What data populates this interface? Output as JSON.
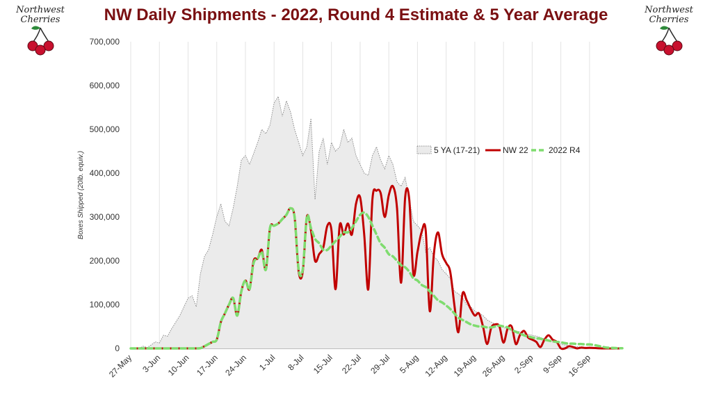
{
  "logo": {
    "line1": "Northwest",
    "line2": "Cherries"
  },
  "colors": {
    "title": "#7a1012",
    "nw22": "#c00000",
    "r4": "#7fdc6f",
    "avg_fill": "#ebebeb",
    "avg_stroke": "#8a8a8a"
  },
  "chart_data": {
    "type": "area",
    "title": "NW Daily Shipments - 2022, Round 4 Estimate & 5 Year Average",
    "ylabel": "Boxes Shipped (20lb. equiv.)",
    "xlabel": "",
    "ylim": [
      0,
      700000
    ],
    "yticks": [
      "0",
      "100,000",
      "200,000",
      "300,000",
      "400,000",
      "500,000",
      "600,000",
      "700,000"
    ],
    "xticks": [
      "27-May",
      "3-Jun",
      "10-Jun",
      "17-Jun",
      "24-Jun",
      "1-Jul",
      "8-Jul",
      "15-Jul",
      "22-Jul",
      "29-Jul",
      "5-Aug",
      "12-Aug",
      "19-Aug",
      "26-Aug",
      "2-Sep",
      "9-Sep",
      "16-Sep"
    ],
    "x_start": "27-May",
    "x_step_days": 1,
    "legend": {
      "placement": "upper-right"
    },
    "grid": {
      "vertical": true,
      "horizontal": false
    },
    "series": [
      {
        "name": "5 YA (17-21)",
        "style": "area-dotted",
        "values": [
          0,
          0,
          0,
          5000,
          2000,
          8000,
          15000,
          12000,
          30000,
          28000,
          45000,
          60000,
          75000,
          95000,
          115000,
          120000,
          95000,
          170000,
          210000,
          225000,
          260000,
          300000,
          330000,
          290000,
          280000,
          320000,
          370000,
          430000,
          440000,
          420000,
          445000,
          470000,
          500000,
          490000,
          510000,
          560000,
          575000,
          530000,
          565000,
          540000,
          500000,
          470000,
          440000,
          460000,
          525000,
          340000,
          450000,
          480000,
          420000,
          470000,
          450000,
          460000,
          500000,
          470000,
          480000,
          440000,
          420000,
          400000,
          395000,
          440000,
          460000,
          430000,
          410000,
          440000,
          420000,
          380000,
          370000,
          390000,
          340000,
          290000,
          280000,
          270000,
          220000,
          230000,
          210000,
          200000,
          180000,
          170000,
          160000,
          130000,
          125000,
          115000,
          100000,
          95000,
          85000,
          80000,
          75000,
          65000,
          60000,
          55000,
          50000,
          48000,
          45000,
          42000,
          40000,
          38000,
          35000,
          32000,
          30000,
          28000,
          25000,
          22000,
          20000,
          15000,
          12000,
          10000,
          8000,
          6000,
          5000,
          4000,
          3000,
          2500,
          2000,
          1500,
          1000,
          500,
          0,
          0,
          0,
          0,
          0
        ]
      },
      {
        "name": "NW 22",
        "style": "line-solid",
        "values": [
          0,
          0,
          0,
          0,
          0,
          0,
          0,
          0,
          0,
          0,
          0,
          0,
          0,
          0,
          0,
          0,
          0,
          500,
          5000,
          10000,
          15000,
          20000,
          60000,
          80000,
          100000,
          115000,
          75000,
          130000,
          155000,
          135000,
          200000,
          205000,
          225000,
          180000,
          275000,
          280000,
          285000,
          295000,
          305000,
          320000,
          300000,
          175000,
          175000,
          300000,
          270000,
          200000,
          215000,
          230000,
          280000,
          270000,
          135000,
          280000,
          260000,
          285000,
          260000,
          330000,
          345000,
          260000,
          135000,
          340000,
          360000,
          355000,
          300000,
          350000,
          370000,
          320000,
          150000,
          345000,
          340000,
          170000,
          220000,
          265000,
          270000,
          85000,
          215000,
          265000,
          215000,
          195000,
          175000,
          100000,
          37000,
          125000,
          110000,
          90000,
          75000,
          80000,
          50000,
          10000,
          47000,
          55000,
          50000,
          13000,
          45000,
          50000,
          10000,
          30000,
          40000,
          25000,
          20000,
          15000,
          3000,
          20000,
          30000,
          20000,
          15000,
          0,
          0,
          5000,
          3000,
          0,
          2000,
          1000,
          1500,
          1000,
          500,
          0,
          0,
          0,
          0,
          0,
          0
        ]
      },
      {
        "name": "2022 R4",
        "style": "line-dashed",
        "values": [
          0,
          0,
          0,
          0,
          0,
          0,
          0,
          0,
          0,
          0,
          0,
          0,
          0,
          0,
          0,
          0,
          0,
          500,
          5000,
          10000,
          15000,
          20000,
          60000,
          80000,
          100000,
          115000,
          75000,
          130000,
          155000,
          135000,
          195000,
          205000,
          220000,
          180000,
          275000,
          280000,
          285000,
          295000,
          305000,
          320000,
          300000,
          180000,
          180000,
          300000,
          275000,
          250000,
          240000,
          225000,
          225000,
          235000,
          245000,
          255000,
          265000,
          265000,
          275000,
          290000,
          305000,
          310000,
          300000,
          280000,
          260000,
          240000,
          230000,
          215000,
          210000,
          200000,
          190000,
          185000,
          175000,
          160000,
          155000,
          145000,
          140000,
          130000,
          120000,
          110000,
          105000,
          98000,
          90000,
          80000,
          70000,
          65000,
          60000,
          55000,
          52000,
          50000,
          50000,
          48000,
          48000,
          50000,
          52000,
          50000,
          48000,
          42000,
          38000,
          34000,
          30000,
          27000,
          25000,
          23000,
          22000,
          20000,
          18000,
          16000,
          15000,
          14000,
          12000,
          11000,
          11000,
          10000,
          10000,
          9000,
          9000,
          8000,
          6000,
          4000,
          2000,
          1500,
          1000,
          500,
          500
        ]
      }
    ]
  }
}
